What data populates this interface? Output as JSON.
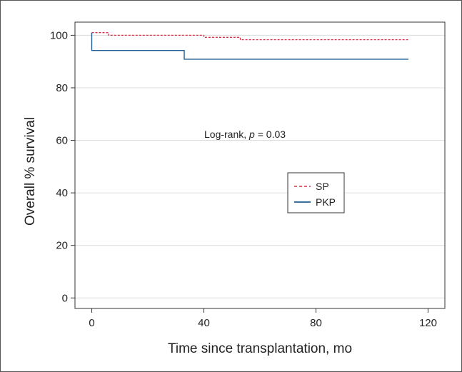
{
  "chart_data": {
    "type": "line",
    "step": true,
    "xlabel": "Time since transplantation, mo",
    "ylabel": "Overall % survival",
    "xlim": [
      -6,
      126
    ],
    "ylim": [
      -4,
      105
    ],
    "xticks": [
      0,
      40,
      80,
      120
    ],
    "xtick_labels": [
      "0",
      "40",
      "80",
      "120"
    ],
    "yticks": [
      0,
      20,
      40,
      60,
      80,
      100
    ],
    "ytick_labels": [
      "0",
      "20",
      "40",
      "60",
      "80",
      "100"
    ],
    "grid": "horizontal",
    "legend_position": "center-right",
    "annotation": {
      "prefix": "Log-rank, ",
      "italic": "p",
      "suffix": " = 0.03"
    },
    "series": [
      {
        "name": "SP",
        "color": "#d6334a",
        "line_style": "dashed",
        "x": [
          0,
          6,
          6,
          40,
          40,
          53,
          53,
          113
        ],
        "y": [
          101,
          101,
          100,
          100,
          99.2,
          99.2,
          98.3,
          98.3
        ]
      },
      {
        "name": "PKP",
        "color": "#1f5c8f",
        "line_style": "solid",
        "x": [
          0,
          0,
          33,
          33,
          113
        ],
        "y": [
          101,
          94.2,
          94.2,
          90.9,
          90.9
        ]
      }
    ]
  }
}
